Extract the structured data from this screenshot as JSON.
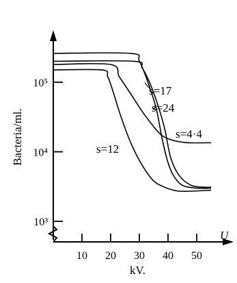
{
  "chart_data": {
    "type": "line",
    "xlabel": "U",
    "x_unit": "kV.",
    "ylabel": "Bacteria/ml.",
    "xlim": [
      0,
      60
    ],
    "ylim": [
      700,
      1000000
    ],
    "y_scale": "log",
    "x_ticks": [
      10,
      20,
      30,
      40,
      50
    ],
    "x_tick_labels": [
      "10",
      "20",
      "30",
      "40",
      "50"
    ],
    "y_ticks": [
      1000,
      10000,
      100000
    ],
    "y_tick_labels": [
      "10³",
      "10⁴",
      "10⁵"
    ],
    "grid": false,
    "legend": "none",
    "series": [
      {
        "name": "s=17",
        "x": [
          0,
          27,
          30,
          33,
          36,
          38,
          40,
          42,
          45,
          50,
          55
        ],
        "y": [
          260000,
          260000,
          200000,
          100000,
          40000,
          15000,
          7000,
          4500,
          3300,
          3000,
          3000
        ]
      },
      {
        "name": "s=24",
        "x": [
          0,
          28,
          31,
          34,
          37,
          39,
          41,
          44,
          48,
          52,
          55
        ],
        "y": [
          200000,
          200000,
          160000,
          90000,
          40000,
          20000,
          8000,
          4500,
          3300,
          3100,
          3100
        ]
      },
      {
        "name": "s=4·4",
        "x": [
          0,
          20,
          23,
          27,
          31,
          35,
          38,
          42,
          47,
          55
        ],
        "y": [
          180000,
          180000,
          120000,
          68000,
          38000,
          23000,
          17000,
          14500,
          13500,
          13500
        ]
      },
      {
        "name": "s=12",
        "x": [
          0,
          17,
          19,
          21,
          23,
          26,
          29,
          32,
          35,
          38,
          42,
          46,
          55
        ],
        "y": [
          150000,
          150000,
          120000,
          70000,
          38000,
          17000,
          9000,
          5500,
          3800,
          3200,
          2800,
          2700,
          2800
        ]
      }
    ]
  }
}
